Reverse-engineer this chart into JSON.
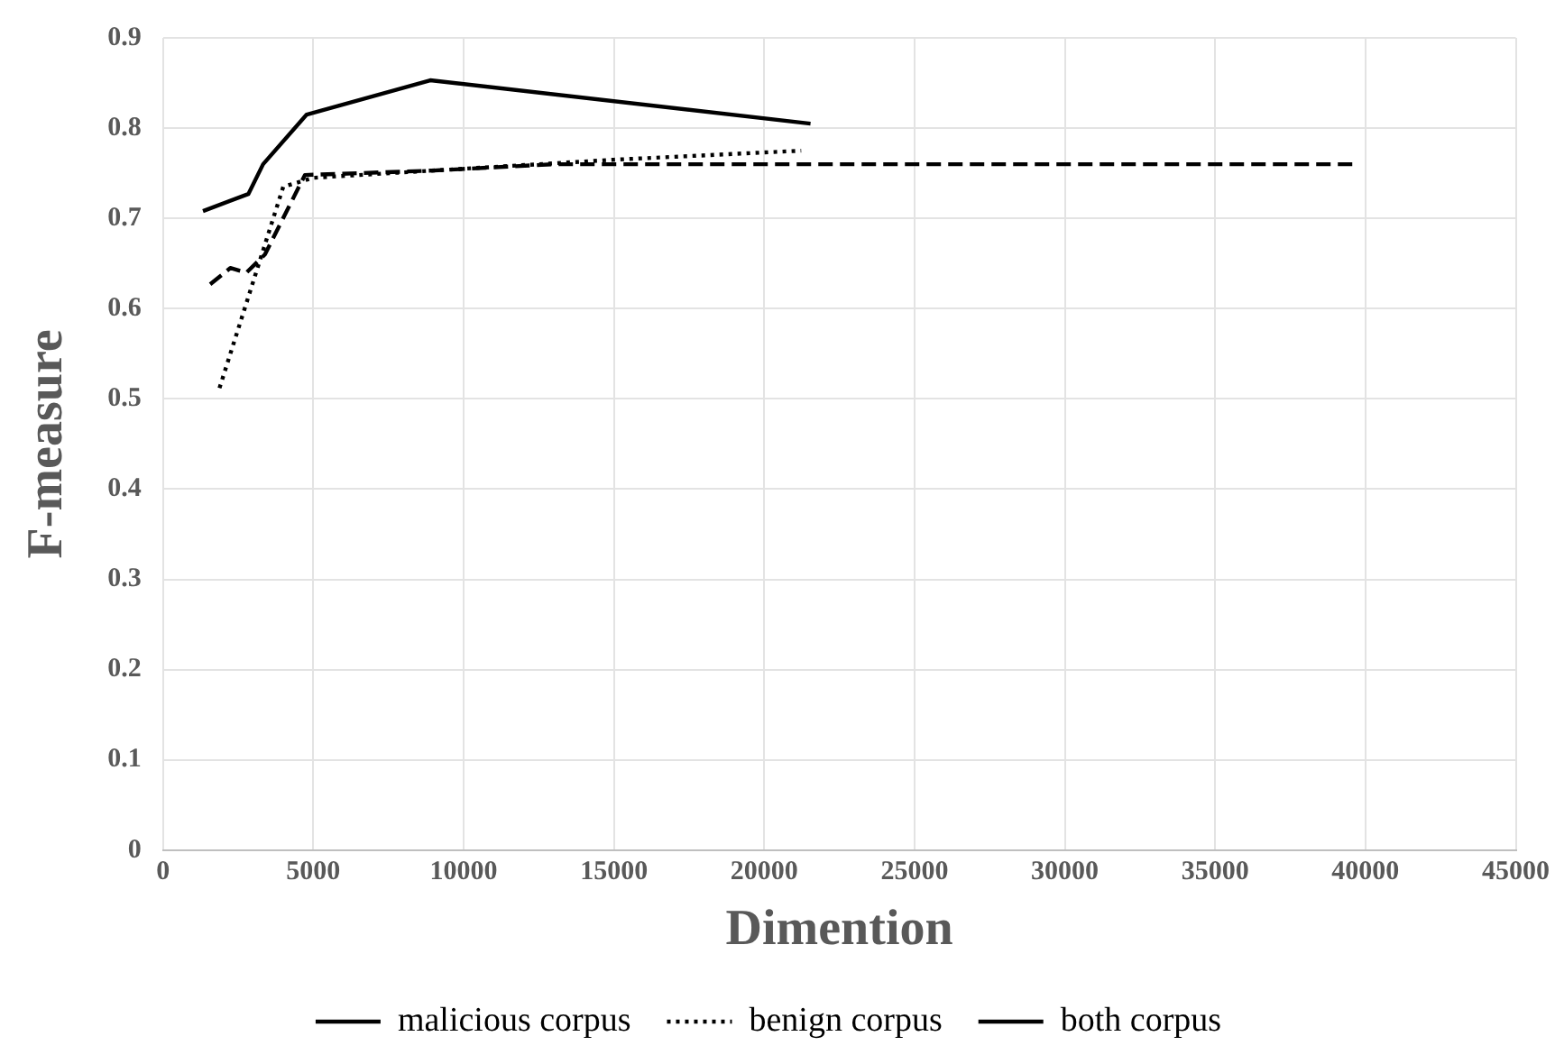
{
  "chart_data": {
    "type": "line",
    "xlabel": "Dimention",
    "ylabel": "F-measure",
    "xlim": [
      0,
      45000
    ],
    "xticks": [
      0,
      5000,
      10000,
      15000,
      20000,
      25000,
      30000,
      35000,
      40000,
      45000
    ],
    "ylim": [
      0,
      0.9
    ],
    "yticks": [
      0,
      0.1,
      0.2,
      0.3,
      0.4,
      0.5,
      0.6,
      0.7,
      0.8,
      0.9
    ],
    "grid": true,
    "legend": "bottom",
    "marker": "none",
    "series": [
      {
        "name": "malicious corpus",
        "color": "#000000",
        "line_style": "solid",
        "x": [
          1330,
          2840,
          3330,
          4780,
          8890,
          21540
        ],
        "values": [
          0.708,
          0.727,
          0.76,
          0.815,
          0.853,
          0.805
        ]
      },
      {
        "name": "benign corpus",
        "color": "#000000",
        "line_style": "dotted",
        "x": [
          1880,
          4000,
          5000,
          10000,
          15000,
          21230
        ],
        "values": [
          0.512,
          0.735,
          0.745,
          0.755,
          0.765,
          0.775
        ]
      },
      {
        "name": "both corpus",
        "color": "#000000",
        "line_style": "dashed",
        "x": [
          1570,
          2240,
          2780,
          3390,
          4720,
          9000,
          13000,
          39690
        ],
        "values": [
          0.627,
          0.645,
          0.64,
          0.66,
          0.748,
          0.753,
          0.76,
          0.76
        ]
      }
    ]
  }
}
